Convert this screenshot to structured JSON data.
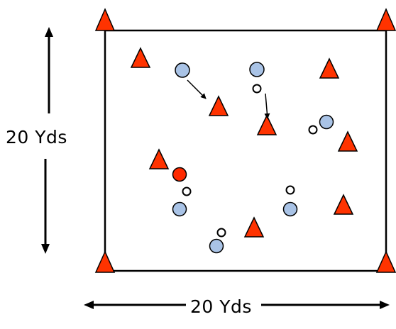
{
  "dimensions": {
    "width_label": "20 Yds",
    "height_label": "20 Yds"
  },
  "colors": {
    "cone": "#ff3300",
    "cone_stroke": "#000000",
    "player_blue": "#a9c3e6",
    "player_red": "#ff2a00",
    "ball": "#ffffff",
    "line": "#000000"
  },
  "diagram": {
    "description_icons": [
      "cone-icon",
      "player-blue-icon",
      "player-red-icon",
      "ball-icon",
      "pass-arrow-icon"
    ]
  }
}
